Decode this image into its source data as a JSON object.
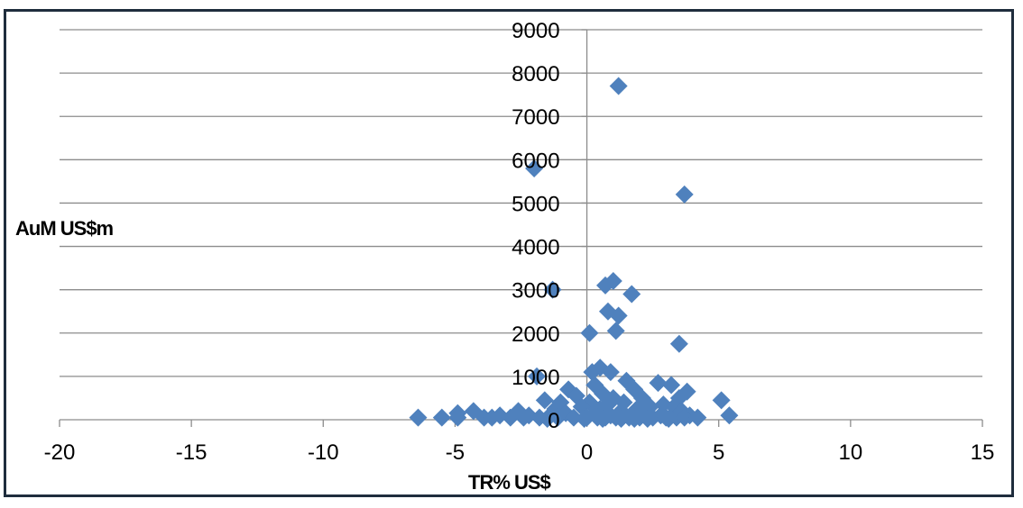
{
  "chart_data": {
    "type": "scatter",
    "title": "",
    "xlabel": "TR% US$",
    "ylabel": "AuM US$m",
    "xlim": [
      -20,
      15
    ],
    "ylim": [
      0,
      9000
    ],
    "x_ticks": [
      -20,
      -15,
      -10,
      -5,
      0,
      5,
      10,
      15
    ],
    "y_ticks": [
      0,
      1000,
      2000,
      3000,
      4000,
      5000,
      6000,
      7000,
      8000,
      9000
    ],
    "grid": "horizontal",
    "legend": "none",
    "marker": "diamond",
    "color": "#4f81bd",
    "points": [
      {
        "x": 1.2,
        "y": 7700
      },
      {
        "x": -2.0,
        "y": 5800
      },
      {
        "x": 3.7,
        "y": 5200
      },
      {
        "x": 1.0,
        "y": 3200
      },
      {
        "x": 0.7,
        "y": 3100
      },
      {
        "x": 1.7,
        "y": 2900
      },
      {
        "x": -1.3,
        "y": 3000
      },
      {
        "x": 0.8,
        "y": 2500
      },
      {
        "x": 1.2,
        "y": 2400
      },
      {
        "x": 1.1,
        "y": 2050
      },
      {
        "x": 0.1,
        "y": 2000
      },
      {
        "x": 3.5,
        "y": 1750
      },
      {
        "x": 0.5,
        "y": 1200
      },
      {
        "x": 0.2,
        "y": 1100
      },
      {
        "x": 0.9,
        "y": 1100
      },
      {
        "x": -1.9,
        "y": 1000
      },
      {
        "x": 1.5,
        "y": 900
      },
      {
        "x": 2.7,
        "y": 850
      },
      {
        "x": 3.2,
        "y": 800
      },
      {
        "x": 0.3,
        "y": 800
      },
      {
        "x": -0.7,
        "y": 700
      },
      {
        "x": 1.8,
        "y": 700
      },
      {
        "x": 3.8,
        "y": 650
      },
      {
        "x": 0.6,
        "y": 600
      },
      {
        "x": -0.4,
        "y": 550
      },
      {
        "x": 1.0,
        "y": 500
      },
      {
        "x": 2.1,
        "y": 500
      },
      {
        "x": 3.5,
        "y": 500
      },
      {
        "x": 5.1,
        "y": 450
      },
      {
        "x": -1.6,
        "y": 450
      },
      {
        "x": -1.0,
        "y": 400
      },
      {
        "x": 0.1,
        "y": 400
      },
      {
        "x": 1.4,
        "y": 400
      },
      {
        "x": 2.9,
        "y": 350
      },
      {
        "x": 0.8,
        "y": 350
      },
      {
        "x": -0.2,
        "y": 300
      },
      {
        "x": 2.4,
        "y": 300
      },
      {
        "x": 3.3,
        "y": 300
      },
      {
        "x": -1.2,
        "y": 250
      },
      {
        "x": 0.5,
        "y": 250
      },
      {
        "x": 1.9,
        "y": 250
      },
      {
        "x": -4.3,
        "y": 200
      },
      {
        "x": -2.6,
        "y": 200
      },
      {
        "x": 1.3,
        "y": 200
      },
      {
        "x": 3.6,
        "y": 200
      },
      {
        "x": -4.9,
        "y": 150
      },
      {
        "x": -0.8,
        "y": 150
      },
      {
        "x": 0.3,
        "y": 150
      },
      {
        "x": 2.2,
        "y": 150
      },
      {
        "x": 5.4,
        "y": 100
      },
      {
        "x": -3.3,
        "y": 100
      },
      {
        "x": -2.2,
        "y": 100
      },
      {
        "x": -1.4,
        "y": 100
      },
      {
        "x": 0.9,
        "y": 100
      },
      {
        "x": 2.8,
        "y": 100
      },
      {
        "x": 3.9,
        "y": 100
      },
      {
        "x": -6.4,
        "y": 50
      },
      {
        "x": -5.5,
        "y": 50
      },
      {
        "x": -4.9,
        "y": 50
      },
      {
        "x": -3.9,
        "y": 50
      },
      {
        "x": -3.6,
        "y": 50
      },
      {
        "x": -2.9,
        "y": 50
      },
      {
        "x": -2.4,
        "y": 50
      },
      {
        "x": -1.8,
        "y": 50
      },
      {
        "x": -1.1,
        "y": 50
      },
      {
        "x": -0.5,
        "y": 50
      },
      {
        "x": 0.0,
        "y": 50
      },
      {
        "x": 0.4,
        "y": 50
      },
      {
        "x": 0.7,
        "y": 50
      },
      {
        "x": 1.1,
        "y": 50
      },
      {
        "x": 1.6,
        "y": 50
      },
      {
        "x": 2.0,
        "y": 50
      },
      {
        "x": 2.5,
        "y": 50
      },
      {
        "x": 3.0,
        "y": 50
      },
      {
        "x": 3.4,
        "y": 50
      },
      {
        "x": 3.7,
        "y": 50
      },
      {
        "x": 4.2,
        "y": 50
      },
      {
        "x": -0.1,
        "y": 20
      },
      {
        "x": 0.6,
        "y": 20
      },
      {
        "x": 1.3,
        "y": 20
      },
      {
        "x": 2.3,
        "y": 20
      },
      {
        "x": 3.1,
        "y": 20
      },
      {
        "x": -1.5,
        "y": 20
      },
      {
        "x": 1.8,
        "y": 20
      }
    ]
  }
}
